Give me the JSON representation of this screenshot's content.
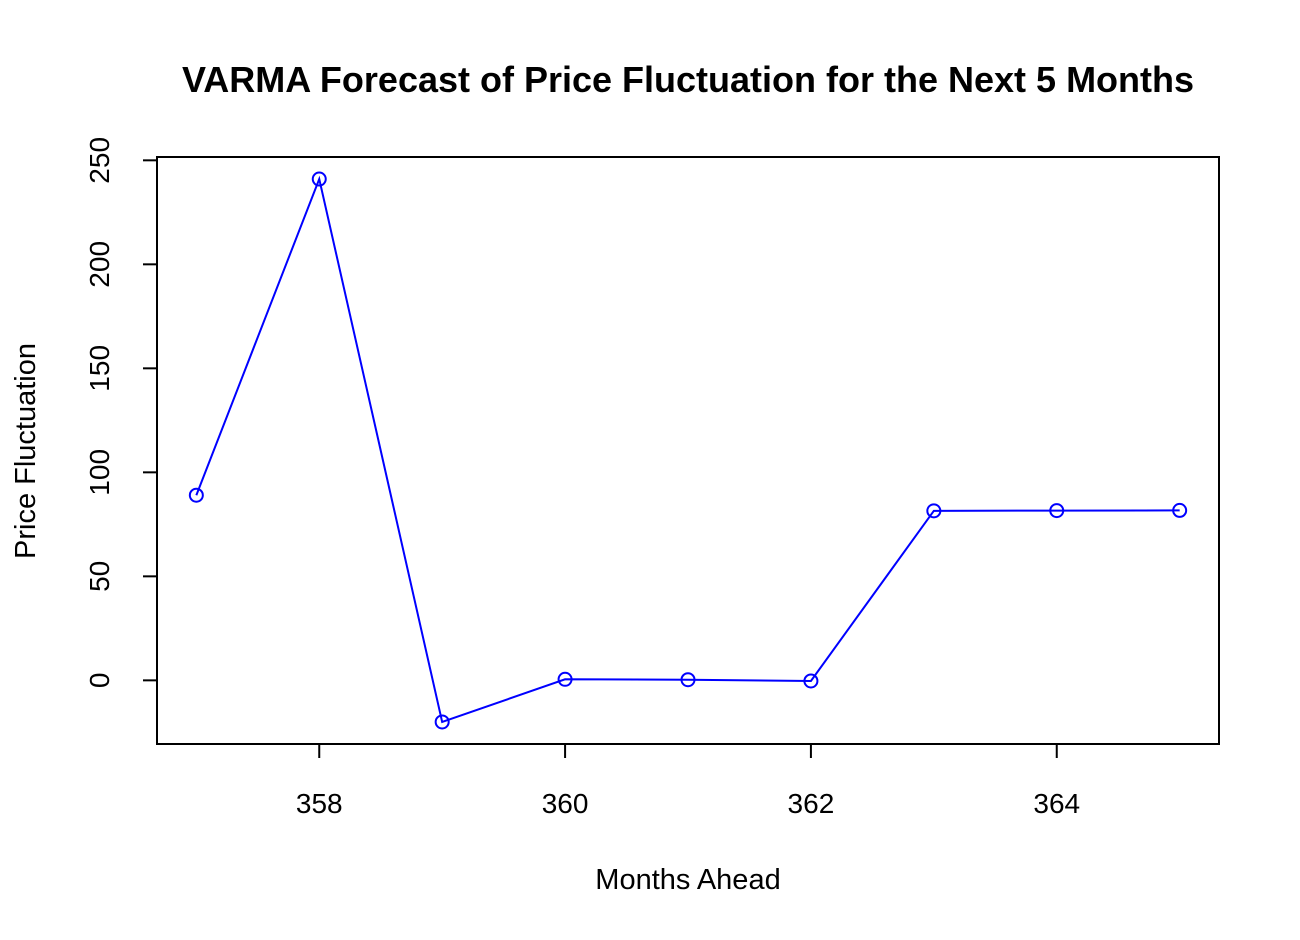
{
  "chart_data": {
    "type": "line",
    "title": "VARMA Forecast of Price Fluctuation for the Next 5 Months",
    "xlabel": "Months Ahead",
    "ylabel": "Price Fluctuation",
    "x": [
      357,
      358,
      359,
      360,
      361,
      362,
      363,
      364,
      365
    ],
    "series": [
      {
        "values": [
          89,
          241,
          -20,
          0.5,
          0.3,
          -0.3,
          81.5,
          81.6,
          81.7
        ]
      }
    ],
    "xlim": [
      356.68,
      365.32
    ],
    "ylim": [
      -30.6,
      251.6
    ],
    "xticks": [
      358,
      360,
      362,
      364
    ],
    "yticks": [
      0,
      50,
      100,
      150,
      200,
      250
    ],
    "marker": "open-circle",
    "grid": false,
    "legend": "none"
  },
  "colors": {
    "series": "#0000ff",
    "axis": "#000000"
  }
}
